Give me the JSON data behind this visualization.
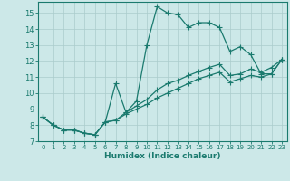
{
  "xlabel": "Humidex (Indice chaleur)",
  "bg_color": "#cce8e8",
  "line_color": "#1a7a6e",
  "grid_color": "#aacccc",
  "spine_color": "#1a7a6e",
  "xlim": [
    -0.5,
    23.5
  ],
  "ylim": [
    7,
    15.7
  ],
  "yticks": [
    7,
    8,
    9,
    10,
    11,
    12,
    13,
    14,
    15
  ],
  "xticks": [
    0,
    1,
    2,
    3,
    4,
    5,
    6,
    7,
    8,
    9,
    10,
    11,
    12,
    13,
    14,
    15,
    16,
    17,
    18,
    19,
    20,
    21,
    22,
    23
  ],
  "line1_x": [
    0,
    1,
    2,
    3,
    4,
    5,
    6,
    7,
    8,
    9,
    10,
    11,
    12,
    13,
    14,
    15,
    16,
    17,
    18,
    19,
    20,
    21,
    22,
    23
  ],
  "line1_y": [
    8.5,
    8.0,
    7.7,
    7.7,
    7.5,
    7.4,
    8.2,
    10.6,
    8.8,
    9.5,
    13.0,
    15.4,
    15.0,
    14.9,
    14.1,
    14.4,
    14.4,
    14.1,
    12.6,
    12.9,
    12.4,
    11.2,
    11.2,
    12.1
  ],
  "line2_x": [
    0,
    1,
    2,
    3,
    4,
    5,
    6,
    7,
    8,
    9,
    10,
    11,
    12,
    13,
    14,
    15,
    16,
    17,
    18,
    19,
    20,
    21,
    22,
    23
  ],
  "line2_y": [
    8.5,
    8.0,
    7.7,
    7.7,
    7.5,
    7.4,
    8.2,
    8.3,
    8.8,
    9.2,
    9.6,
    10.2,
    10.6,
    10.8,
    11.1,
    11.35,
    11.6,
    11.8,
    11.1,
    11.2,
    11.5,
    11.3,
    11.6,
    12.1
  ],
  "line3_x": [
    0,
    1,
    2,
    3,
    4,
    5,
    6,
    7,
    8,
    9,
    10,
    11,
    12,
    13,
    14,
    15,
    16,
    17,
    18,
    19,
    20,
    21,
    22,
    23
  ],
  "line3_y": [
    8.5,
    8.0,
    7.7,
    7.7,
    7.5,
    7.4,
    8.2,
    8.3,
    8.7,
    9.0,
    9.3,
    9.7,
    10.0,
    10.3,
    10.6,
    10.9,
    11.1,
    11.3,
    10.7,
    10.9,
    11.1,
    11.0,
    11.2,
    12.1
  ]
}
